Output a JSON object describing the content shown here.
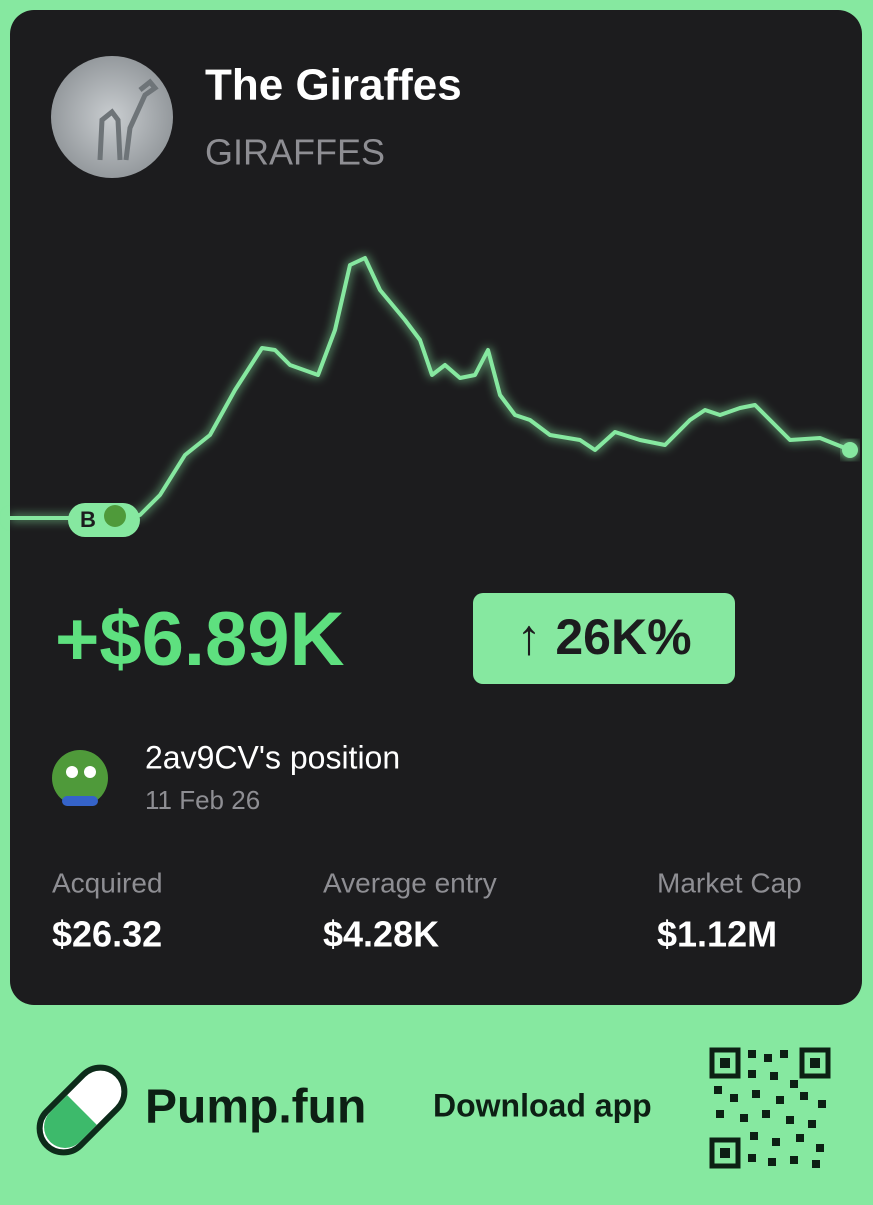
{
  "header": {
    "title": "The Giraffes",
    "ticker": "GIRAFFES"
  },
  "chart": {
    "marker_label": "B"
  },
  "pnl": {
    "amount": "+$6.89K",
    "change": "↑ 26K%"
  },
  "position": {
    "owner": "2av9CV's position",
    "date": "11 Feb 26"
  },
  "stats": [
    {
      "label": "Acquired",
      "value": "$26.32"
    },
    {
      "label": "Average entry",
      "value": "$4.28K"
    },
    {
      "label": "Market Cap",
      "value": "$1.12M"
    }
  ],
  "footer": {
    "brand": "Pump.fun",
    "cta": "Download app"
  }
}
